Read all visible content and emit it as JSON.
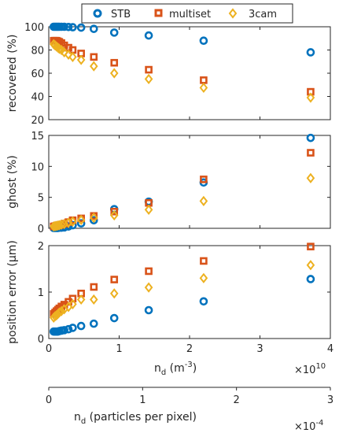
{
  "chart_data": {
    "type": "scatter",
    "legend": {
      "placement": "top",
      "entries": [
        {
          "name": "STB",
          "color": "#0072BD",
          "marker": "circle"
        },
        {
          "name": "multiset",
          "color": "#D95319",
          "marker": "square"
        },
        {
          "name": "3cam",
          "color": "#EDB120",
          "marker": "diamond"
        }
      ]
    },
    "x_axis": {
      "label_main": "n",
      "label_sub": "d",
      "label_rest": " (m",
      "label_sup": "-3",
      "label_close": ")",
      "xlim": [
        0,
        40000000000.0
      ],
      "ticks": [
        "0",
        "1",
        "2",
        "3",
        "4"
      ],
      "exponent_base": "×10",
      "exponent_power": "10"
    },
    "secondary_x_axis": {
      "label_main": "n",
      "label_sub": "d",
      "label_rest": " (particles per pixel)",
      "xlim": [
        0,
        0.0003
      ],
      "ticks": [
        "0",
        "1",
        "2",
        "3"
      ],
      "exponent_base": "×10",
      "exponent_power": "-4"
    },
    "x": [
      700000000.0,
      900000000.0,
      1100000000.0,
      1300000000.0,
      1500000000.0,
      1800000000.0,
      2200000000.0,
      2800000000.0,
      3400000000.0,
      4600000000.0,
      6400000000.0,
      9300000000.0,
      14200000000.0,
      22000000000.0,
      37200000000.0
    ],
    "panels": [
      {
        "ylabel": "recovered (%)",
        "ylim": [
          20,
          100
        ],
        "yticks": [
          "20",
          "40",
          "60",
          "80",
          "100"
        ],
        "series": [
          {
            "name": "STB",
            "values": [
              100,
              100,
              100,
              100,
              100,
              100,
              100,
              99.8,
              99.6,
              99.3,
              98.2,
              95,
              92.5,
              88,
              78
            ]
          },
          {
            "name": "multiset",
            "values": [
              88,
              88,
              88,
              87.5,
              87,
              86,
              84,
              82,
              80,
              77,
              74,
              69,
              63,
              54,
              44
            ]
          },
          {
            "name": "3cam",
            "values": [
              85,
              84,
              83,
              82,
              81,
              80,
              78,
              76,
              74,
              71.5,
              66,
              60,
              55,
              47.5,
              39
            ]
          }
        ]
      },
      {
        "ylabel": "ghost (%)",
        "ylim": [
          0,
          15
        ],
        "yticks": [
          "0",
          "5",
          "10",
          "15"
        ],
        "series": [
          {
            "name": "STB",
            "values": [
              0.05,
              0.05,
              0.05,
              0.05,
              0.1,
              0.1,
              0.15,
              0.3,
              0.5,
              0.8,
              1.3,
              3.1,
              4.3,
              7.4,
              14.6
            ]
          },
          {
            "name": "multiset",
            "values": [
              0.3,
              0.35,
              0.4,
              0.45,
              0.5,
              0.6,
              0.75,
              1.0,
              1.3,
              1.6,
              2.0,
              2.7,
              4.1,
              7.9,
              12.2
            ]
          },
          {
            "name": "3cam",
            "values": [
              0.3,
              0.35,
              0.4,
              0.45,
              0.5,
              0.6,
              0.7,
              0.9,
              1.1,
              1.35,
              1.7,
              2.1,
              3.0,
              4.4,
              8.1
            ]
          }
        ]
      },
      {
        "ylabel": "position error (µm)",
        "ylim": [
          0,
          2
        ],
        "yticks": [
          "0",
          "1",
          "2"
        ],
        "series": [
          {
            "name": "STB",
            "values": [
              0.15,
              0.15,
              0.15,
              0.15,
              0.16,
              0.17,
              0.18,
              0.2,
              0.23,
              0.27,
              0.32,
              0.44,
              0.61,
              0.8,
              1.28
            ]
          },
          {
            "name": "multiset",
            "values": [
              0.53,
              0.56,
              0.59,
              0.62,
              0.65,
              0.69,
              0.73,
              0.79,
              0.86,
              0.97,
              1.11,
              1.27,
              1.45,
              1.67,
              1.98
            ]
          },
          {
            "name": "3cam",
            "values": [
              0.45,
              0.48,
              0.5,
              0.53,
              0.56,
              0.59,
              0.63,
              0.68,
              0.74,
              0.84,
              0.84,
              0.97,
              1.1,
              1.3,
              1.58
            ]
          }
        ]
      }
    ]
  }
}
